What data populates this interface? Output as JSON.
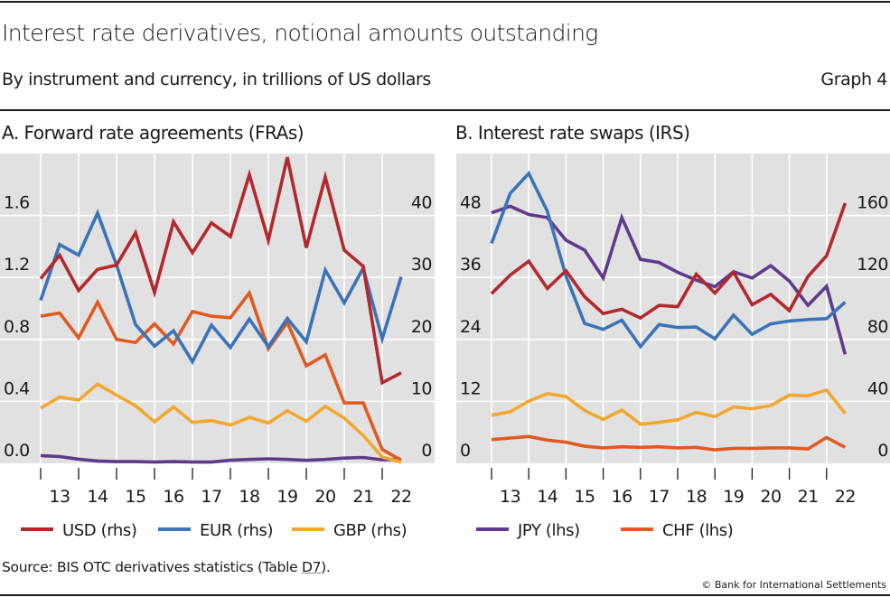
{
  "header": {
    "title": "Interest rate derivatives, notional amounts outstanding",
    "subtitle": "By instrument and currency, in trillions of US dollars",
    "graph_number": "Graph 4"
  },
  "footer": {
    "source_prefix": "Source: BIS OTC derivatives statistics (Table ",
    "source_link": "D7",
    "source_suffix": ").",
    "copyright": "© Bank for International Settlements"
  },
  "colors": {
    "USD": "#b3282d",
    "EUR": "#3a73b9",
    "GBP": "#f2a72e",
    "JPY": "#5e3a8c",
    "CHF": "#e05a22",
    "plot_background": "#e1e1e1",
    "gridline": "#ffffff"
  },
  "legend": {
    "panel_a": [
      {
        "key": "USD",
        "label": "USD (rhs)"
      },
      {
        "key": "EUR",
        "label": "EUR (rhs)"
      },
      {
        "key": "GBP",
        "label": "GBP (rhs)"
      }
    ],
    "panel_b": [
      {
        "key": "JPY",
        "label": "JPY (lhs)"
      },
      {
        "key": "CHF",
        "label": "CHF (lhs)"
      }
    ]
  },
  "chart_data": [
    {
      "type": "line",
      "title": "A. Forward rate agreements (FRAs)",
      "xlabel": "",
      "x": [
        "2012H2",
        "2013H1",
        "2013H2",
        "2014H1",
        "2014H2",
        "2015H1",
        "2015H2",
        "2016H1",
        "2016H2",
        "2017H1",
        "2017H2",
        "2018H1",
        "2018H2",
        "2019H1",
        "2019H2",
        "2020H1",
        "2020H2",
        "2021H1",
        "2021H2",
        "2022H1"
      ],
      "x_tick_labels": [
        "13",
        "14",
        "15",
        "16",
        "17",
        "18",
        "19",
        "20",
        "21",
        "22"
      ],
      "ylabel_left": "lhs",
      "ylabel_right": "rhs",
      "ylim_left": [
        0,
        2.0
      ],
      "ylim_right": [
        0,
        50
      ],
      "yticks_left": [
        "0.0",
        "0.4",
        "0.8",
        "1.2",
        "1.6"
      ],
      "yticks_left_values": [
        0,
        0.4,
        0.8,
        1.2,
        1.6
      ],
      "yticks_right": [
        "0",
        "10",
        "20",
        "30",
        "40"
      ],
      "yticks_right_values": [
        0,
        10,
        20,
        30,
        40
      ],
      "grid": true,
      "legend_position": "bottom",
      "series": [
        {
          "name": "USD",
          "axis": "right",
          "values": [
            29.8,
            33.6,
            27.9,
            31.3,
            32.0,
            37.2,
            27.6,
            39.0,
            34.0,
            38.8,
            36.6,
            46.6,
            36.0,
            49.4,
            34.8,
            46.2,
            34.4,
            31.8,
            13.0,
            14.6
          ]
        },
        {
          "name": "EUR",
          "axis": "right",
          "values": [
            26.3,
            35.3,
            33.6,
            40.4,
            32.0,
            22.4,
            18.9,
            21.4,
            16.4,
            22.3,
            18.7,
            23.3,
            18.8,
            23.4,
            19.6,
            31.2,
            25.9,
            31.5,
            20.1,
            30.1
          ]
        },
        {
          "name": "GBP",
          "axis": "right",
          "values": [
            8.9,
            10.7,
            10.2,
            12.8,
            11.0,
            9.3,
            6.7,
            9.1,
            6.6,
            6.9,
            6.2,
            7.4,
            6.5,
            8.5,
            6.8,
            9.2,
            7.3,
            4.5,
            1.0,
            0.2
          ]
        },
        {
          "name": "CHF",
          "axis": "left",
          "values": [
            0.95,
            0.97,
            0.81,
            1.04,
            0.8,
            0.78,
            0.9,
            0.77,
            0.98,
            0.95,
            0.94,
            1.1,
            0.74,
            0.91,
            0.63,
            0.7,
            0.39,
            0.39,
            0.09,
            0.02
          ]
        },
        {
          "name": "JPY",
          "axis": "left",
          "values": [
            0.05,
            0.044,
            0.027,
            0.015,
            0.011,
            0.011,
            0.008,
            0.011,
            0.008,
            0.008,
            0.02,
            0.025,
            0.029,
            0.025,
            0.019,
            0.025,
            0.034,
            0.038,
            0.023,
            0.025
          ]
        }
      ]
    },
    {
      "type": "line",
      "title": "B. Interest rate swaps (IRS)",
      "xlabel": "",
      "x": [
        "2012H2",
        "2013H1",
        "2013H2",
        "2014H1",
        "2014H2",
        "2015H1",
        "2015H2",
        "2016H1",
        "2016H2",
        "2017H1",
        "2017H2",
        "2018H1",
        "2018H2",
        "2019H1",
        "2019H2",
        "2020H1",
        "2020H2",
        "2021H1",
        "2021H2",
        "2022H1"
      ],
      "x_tick_labels": [
        "13",
        "14",
        "15",
        "16",
        "17",
        "18",
        "19",
        "20",
        "21",
        "22"
      ],
      "ylabel_left": "lhs",
      "ylabel_right": "rhs",
      "ylim_left": [
        0,
        60
      ],
      "ylim_right": [
        0,
        200
      ],
      "yticks_left": [
        "0",
        "12",
        "24",
        "36",
        "48"
      ],
      "yticks_left_values": [
        0,
        12,
        24,
        36,
        48
      ],
      "yticks_right": [
        "0",
        "40",
        "80",
        "120",
        "160"
      ],
      "yticks_right_values": [
        0,
        40,
        80,
        120,
        160
      ],
      "grid": true,
      "legend_position": "bottom",
      "series": [
        {
          "name": "USD",
          "axis": "right",
          "values": [
            109.5,
            121.5,
            130.5,
            112.9,
            124.4,
            107.6,
            96.7,
            99.5,
            93.8,
            102.0,
            101.1,
            122.1,
            109.9,
            123.4,
            102.4,
            109.1,
            98.6,
            120.6,
            134.0,
            168.0
          ]
        },
        {
          "name": "EUR",
          "axis": "right",
          "values": [
            142.0,
            174.2,
            187.2,
            162.7,
            121.0,
            90.3,
            86.5,
            92.4,
            75.4,
            89.6,
            87.7,
            88.0,
            80.4,
            95.7,
            83.3,
            90.0,
            91.9,
            92.8,
            93.4,
            104.1
          ]
        },
        {
          "name": "GBP",
          "axis": "right",
          "values": [
            31.0,
            33.3,
            40.2,
            45.0,
            43.1,
            34.1,
            28.3,
            34.4,
            25.3,
            26.4,
            28.1,
            32.9,
            30.2,
            36.4,
            35.2,
            37.3,
            44.0,
            43.6,
            47.3,
            32.2
          ]
        },
        {
          "name": "JPY",
          "axis": "left",
          "values": [
            48.5,
            49.8,
            48.2,
            47.6,
            43.2,
            41.3,
            35.9,
            47.6,
            39.5,
            38.9,
            37.0,
            35.5,
            34.2,
            37.1,
            35.9,
            38.3,
            35.3,
            30.6,
            34.3,
            21.1
          ]
        },
        {
          "name": "CHF",
          "axis": "left",
          "values": [
            4.6,
            4.9,
            5.2,
            4.5,
            4.1,
            3.3,
            3.0,
            3.2,
            3.1,
            3.2,
            3.0,
            3.1,
            2.6,
            2.9,
            2.9,
            3.0,
            3.0,
            2.8,
            5.0,
            3.1
          ]
        }
      ]
    }
  ]
}
